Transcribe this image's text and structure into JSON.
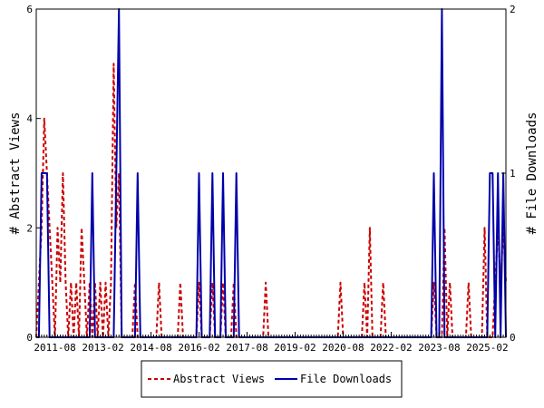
{
  "chart_data": {
    "type": "line",
    "title": "",
    "ylabel_left": "# Abstract Views",
    "ylabel_right": "# File Downloads",
    "ylim_left": [
      0,
      6
    ],
    "ylim_right": [
      0,
      2
    ],
    "yticks_left": [
      "0",
      "2",
      "4",
      "6"
    ],
    "yticks_right": [
      "0",
      "1",
      "2"
    ],
    "x_range": [
      "2011-01",
      "2025-09"
    ],
    "xticks": [
      "2011-08",
      "2013-02",
      "2014-08",
      "2016-02",
      "2017-08",
      "2019-02",
      "2020-08",
      "2022-02",
      "2023-08",
      "2025-02"
    ],
    "grid": false,
    "legend_position": "bottom-center",
    "series": [
      {
        "name": "Abstract Views",
        "axis": "left",
        "color": "#cc0000",
        "style": "dashed",
        "points": [
          [
            "2011-01",
            0
          ],
          [
            "2011-02",
            1
          ],
          [
            "2011-03",
            2
          ],
          [
            "2011-04",
            4
          ],
          [
            "2011-05",
            3
          ],
          [
            "2011-06",
            2
          ],
          [
            "2011-07",
            1
          ],
          [
            "2011-08",
            0
          ],
          [
            "2011-09",
            2
          ],
          [
            "2011-10",
            1
          ],
          [
            "2011-11",
            3
          ],
          [
            "2011-12",
            1
          ],
          [
            "2012-01",
            0
          ],
          [
            "2012-02",
            1
          ],
          [
            "2012-03",
            0
          ],
          [
            "2012-04",
            1
          ],
          [
            "2012-05",
            0
          ],
          [
            "2012-06",
            2
          ],
          [
            "2012-07",
            1
          ],
          [
            "2012-08",
            0
          ],
          [
            "2012-09",
            1
          ],
          [
            "2012-10",
            0
          ],
          [
            "2012-11",
            1
          ],
          [
            "2012-12",
            0
          ],
          [
            "2013-01",
            1
          ],
          [
            "2013-02",
            0
          ],
          [
            "2013-03",
            1
          ],
          [
            "2013-04",
            0
          ],
          [
            "2013-05",
            1
          ],
          [
            "2013-06",
            5
          ],
          [
            "2013-07",
            2
          ],
          [
            "2013-08",
            3
          ],
          [
            "2013-09",
            0
          ],
          [
            "2013-10",
            0
          ],
          [
            "2013-11",
            0
          ],
          [
            "2014-01",
            0
          ],
          [
            "2014-02",
            1
          ],
          [
            "2014-03",
            0
          ],
          [
            "2014-10",
            0
          ],
          [
            "2014-11",
            1
          ],
          [
            "2014-12",
            0
          ],
          [
            "2015-06",
            0
          ],
          [
            "2015-07",
            1
          ],
          [
            "2015-08",
            0
          ],
          [
            "2016-01",
            0
          ],
          [
            "2016-02",
            1
          ],
          [
            "2016-03",
            0
          ],
          [
            "2016-06",
            0
          ],
          [
            "2016-07",
            1
          ],
          [
            "2016-08",
            0
          ],
          [
            "2016-10",
            0
          ],
          [
            "2016-11",
            1
          ],
          [
            "2016-12",
            0
          ],
          [
            "2017-02",
            0
          ],
          [
            "2017-03",
            1
          ],
          [
            "2017-04",
            0
          ],
          [
            "2018-02",
            0
          ],
          [
            "2018-03",
            1
          ],
          [
            "2018-04",
            0
          ],
          [
            "2020-06",
            0
          ],
          [
            "2020-07",
            1
          ],
          [
            "2020-08",
            0
          ],
          [
            "2021-03",
            0
          ],
          [
            "2021-04",
            1
          ],
          [
            "2021-05",
            0
          ],
          [
            "2021-06",
            2
          ],
          [
            "2021-07",
            0
          ],
          [
            "2021-10",
            0
          ],
          [
            "2021-11",
            1
          ],
          [
            "2021-12",
            0
          ],
          [
            "2023-05",
            0
          ],
          [
            "2023-06",
            1
          ],
          [
            "2023-07",
            0
          ],
          [
            "2023-09",
            0
          ],
          [
            "2023-10",
            2
          ],
          [
            "2023-11",
            0
          ],
          [
            "2023-12",
            1
          ],
          [
            "2024-01",
            0
          ],
          [
            "2024-06",
            0
          ],
          [
            "2024-07",
            1
          ],
          [
            "2024-08",
            0
          ],
          [
            "2024-12",
            0
          ],
          [
            "2025-01",
            2
          ],
          [
            "2025-02",
            0
          ],
          [
            "2025-04",
            0
          ],
          [
            "2025-05",
            1
          ],
          [
            "2025-06",
            2
          ],
          [
            "2025-07",
            1
          ],
          [
            "2025-08",
            2
          ],
          [
            "2025-09",
            1
          ]
        ]
      },
      {
        "name": "File Downloads",
        "axis": "right",
        "color": "#0000aa",
        "style": "solid",
        "points": [
          [
            "2011-01",
            0
          ],
          [
            "2011-02",
            0
          ],
          [
            "2011-03",
            1
          ],
          [
            "2011-04",
            1
          ],
          [
            "2011-05",
            1
          ],
          [
            "2011-06",
            0
          ],
          [
            "2011-07",
            0
          ],
          [
            "2011-08",
            0
          ],
          [
            "2011-09",
            0
          ],
          [
            "2011-10",
            0
          ],
          [
            "2011-11",
            0
          ],
          [
            "2011-12",
            0
          ],
          [
            "2012-01",
            0
          ],
          [
            "2012-02",
            0
          ],
          [
            "2012-03",
            0
          ],
          [
            "2012-04",
            0
          ],
          [
            "2012-05",
            0
          ],
          [
            "2012-06",
            0
          ],
          [
            "2012-07",
            0
          ],
          [
            "2012-08",
            0
          ],
          [
            "2012-09",
            0
          ],
          [
            "2012-10",
            1
          ],
          [
            "2012-11",
            0
          ],
          [
            "2012-12",
            0
          ],
          [
            "2013-01",
            0
          ],
          [
            "2013-02",
            0
          ],
          [
            "2013-03",
            0
          ],
          [
            "2013-04",
            0
          ],
          [
            "2013-05",
            0
          ],
          [
            "2013-06",
            0
          ],
          [
            "2013-07",
            1
          ],
          [
            "2013-08",
            2
          ],
          [
            "2013-09",
            0
          ],
          [
            "2013-10",
            0
          ],
          [
            "2014-02",
            0
          ],
          [
            "2014-03",
            1
          ],
          [
            "2014-04",
            0
          ],
          [
            "2016-01",
            0
          ],
          [
            "2016-02",
            1
          ],
          [
            "2016-03",
            0
          ],
          [
            "2016-06",
            0
          ],
          [
            "2016-07",
            1
          ],
          [
            "2016-08",
            0
          ],
          [
            "2016-10",
            0
          ],
          [
            "2016-11",
            1
          ],
          [
            "2016-12",
            0
          ],
          [
            "2017-03",
            0
          ],
          [
            "2017-04",
            1
          ],
          [
            "2017-05",
            0
          ],
          [
            "2023-05",
            0
          ],
          [
            "2023-06",
            1
          ],
          [
            "2023-07",
            0
          ],
          [
            "2023-08",
            0
          ],
          [
            "2023-09",
            2
          ],
          [
            "2023-10",
            0
          ],
          [
            "2024-12",
            0
          ],
          [
            "2025-01",
            0
          ],
          [
            "2025-02",
            0
          ],
          [
            "2025-03",
            1
          ],
          [
            "2025-04",
            1
          ],
          [
            "2025-05",
            0
          ],
          [
            "2025-06",
            1
          ],
          [
            "2025-07",
            0
          ],
          [
            "2025-08",
            1
          ],
          [
            "2025-09",
            0
          ]
        ]
      }
    ]
  }
}
